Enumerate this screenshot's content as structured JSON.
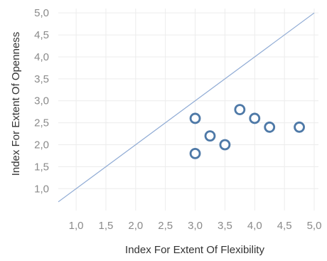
{
  "chart_data": {
    "type": "scatter",
    "title": "",
    "xlabel": "Index For Extent Of Flexibility",
    "ylabel": "Index For Extent Of Openness",
    "xlim": [
      0.7,
      5.0
    ],
    "ylim": [
      0.6,
      5.1
    ],
    "x_ticks": [
      "1,0",
      "1,5",
      "2,0",
      "2,5",
      "3,0",
      "3,5",
      "4,0",
      "4,5",
      "5,0"
    ],
    "x_tick_values": [
      1.0,
      1.5,
      2.0,
      2.5,
      3.0,
      3.5,
      4.0,
      4.5,
      5.0
    ],
    "y_ticks": [
      "1,0",
      "1,5",
      "2,0",
      "2,5",
      "3,0",
      "3,5",
      "4,0",
      "4,5",
      "5,0"
    ],
    "y_tick_values": [
      1.0,
      1.5,
      2.0,
      2.5,
      3.0,
      3.5,
      4.0,
      4.5,
      5.0
    ],
    "grid": true,
    "reference_line": {
      "kind": "y=x",
      "from": [
        0.7,
        0.7
      ],
      "to": [
        5.0,
        5.0
      ],
      "color": "#8eaad4"
    },
    "marker": {
      "shape": "open-circle",
      "color": "#4e79a7"
    },
    "series": [
      {
        "points": [
          {
            "x": 3.0,
            "y": 2.6
          },
          {
            "x": 3.0,
            "y": 1.8
          },
          {
            "x": 3.25,
            "y": 2.2
          },
          {
            "x": 3.5,
            "y": 2.0
          },
          {
            "x": 3.75,
            "y": 2.8
          },
          {
            "x": 4.0,
            "y": 2.6
          },
          {
            "x": 4.25,
            "y": 2.4
          },
          {
            "x": 4.75,
            "y": 2.4
          }
        ]
      }
    ]
  }
}
